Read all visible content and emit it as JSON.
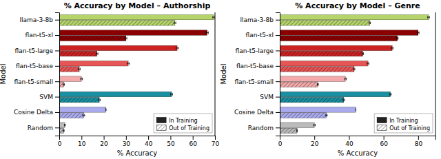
{
  "chart_data": [
    {
      "type": "bar",
      "orientation": "horizontal",
      "title": "% Accuracy by Model – Authorship",
      "xlabel": "% Accuracy",
      "ylabel": "Model",
      "categories": [
        "llama-3-8b",
        "flan-t5-xl",
        "flan-t5-large",
        "flan-t5-base",
        "flan-t5-small",
        "SVM",
        "Cosine Delta",
        "Random"
      ],
      "series": [
        {
          "name": "In Training",
          "values": [
            69.5,
            66.5,
            53.0,
            31.0,
            10.0,
            50.5,
            21.0,
            2.5
          ],
          "errors": [
            0.5,
            0.5,
            0.5,
            0.5,
            0.4,
            0.4,
            0.0,
            0.2
          ],
          "colors": [
            "#b5d56a",
            "#8b0000",
            "#cc2222",
            "#e85555",
            "#f4aaaa",
            "#1a8fa0",
            "#aaaaee",
            "#bbbbbb"
          ]
        },
        {
          "name": "Out of Training",
          "values": [
            52.0,
            30.0,
            17.0,
            9.0,
            2.0,
            18.0,
            11.0,
            2.0
          ],
          "errors": [
            0.4,
            0.4,
            0.4,
            0.4,
            0.3,
            0.4,
            0.4,
            0.2
          ],
          "colors": [
            "#b5d56a",
            "#8b0000",
            "#cc2222",
            "#e85555",
            "#f4aaaa",
            "#1a8fa0",
            "#aaaaee",
            "#bbbbbb"
          ]
        }
      ],
      "xlim": [
        0,
        70
      ],
      "xticks": [
        0,
        10,
        20,
        30,
        40,
        50,
        60,
        70
      ],
      "grid": false,
      "legend": "lower right"
    },
    {
      "type": "bar",
      "orientation": "horizontal",
      "title": "% Accuracy by Model – Genre",
      "xlabel": "% Accuracy",
      "ylabel": "Model",
      "categories": [
        "llama-3-8b",
        "flan-t5-xl",
        "flan-t5-large",
        "flan-t5-base",
        "flan-t5-small",
        "SVM",
        "Cosine Delta",
        "Random"
      ],
      "series": [
        {
          "name": "In Training",
          "values": [
            86.0,
            80.0,
            65.0,
            51.0,
            38.0,
            64.0,
            44.0,
            20.0
          ],
          "errors": [
            0.5,
            0.5,
            0.5,
            0.5,
            0.5,
            0.4,
            0.0,
            0.5
          ],
          "colors": [
            "#b5d56a",
            "#8b0000",
            "#cc2222",
            "#e85555",
            "#f4aaaa",
            "#1a8fa0",
            "#aaaaee",
            "#bbbbbb"
          ]
        },
        {
          "name": "Out of Training",
          "values": [
            52.0,
            68.0,
            48.0,
            43.0,
            22.0,
            37.0,
            27.0,
            10.0
          ],
          "errors": [
            0.4,
            0.4,
            0.4,
            0.4,
            0.3,
            0.4,
            0.4,
            0.2
          ],
          "colors": [
            "#b5d56a",
            "#8b0000",
            "#cc2222",
            "#e85555",
            "#f4aaaa",
            "#1a8fa0",
            "#aaaaee",
            "#bbbbbb"
          ]
        }
      ],
      "xlim": [
        0,
        90
      ],
      "xticks": [
        0,
        20,
        40,
        60,
        80
      ],
      "grid": false,
      "legend": "lower right"
    }
  ]
}
